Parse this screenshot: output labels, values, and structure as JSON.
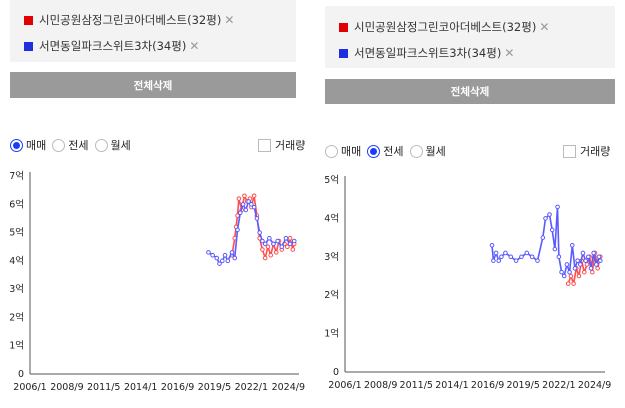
{
  "left": {
    "complexes": [
      {
        "name": "시민공원삼정그린코아더베스트(32평)",
        "color": "#e00000"
      },
      {
        "name": "서면동일파크스위트3차(34평)",
        "color": "#1e2fe0"
      }
    ],
    "clear_label": "전체삭제",
    "trade_tabs": [
      "매매",
      "전세",
      "월세"
    ],
    "selected_tab": "매매",
    "volume_label": "거래량",
    "chart_data": {
      "type": "line",
      "x_ticks": [
        "2006/1",
        "2008/9",
        "2011/5",
        "2014/1",
        "2016/9",
        "2019/5",
        "2022/1",
        "2024/9"
      ],
      "y_ticks": [
        "0",
        "1억",
        "2억",
        "3억",
        "4억",
        "5억",
        "6억",
        "7억"
      ],
      "ylim": [
        0,
        7
      ],
      "series": [
        {
          "name": "시민공원삼정그린코아더베스트(32평)",
          "color": "#ff4d4d",
          "points": [
            [
              2020.6,
              4.2
            ],
            [
              2020.8,
              4.8
            ],
            [
              2020.9,
              5.2
            ],
            [
              2021.0,
              5.6
            ],
            [
              2021.1,
              6.2
            ],
            [
              2021.3,
              5.8
            ],
            [
              2021.5,
              6.3
            ],
            [
              2021.7,
              6.1
            ],
            [
              2021.9,
              6.2
            ],
            [
              2022.0,
              5.9
            ],
            [
              2022.2,
              6.3
            ],
            [
              2022.4,
              5.6
            ],
            [
              2022.6,
              4.8
            ],
            [
              2022.8,
              4.4
            ],
            [
              2023.0,
              4.1
            ],
            [
              2023.2,
              4.5
            ],
            [
              2023.4,
              4.2
            ],
            [
              2023.6,
              4.6
            ],
            [
              2023.8,
              4.3
            ],
            [
              2024.0,
              4.7
            ],
            [
              2024.2,
              4.4
            ],
            [
              2024.4,
              4.6
            ],
            [
              2024.6,
              4.5
            ],
            [
              2024.8,
              4.8
            ],
            [
              2025.0,
              4.4
            ],
            [
              2025.1,
              4.6
            ]
          ]
        },
        {
          "name": "서면동일파크스위트3차(34평)",
          "color": "#5a5aff",
          "points": [
            [
              2018.9,
              4.3
            ],
            [
              2019.2,
              4.2
            ],
            [
              2019.5,
              4.1
            ],
            [
              2019.7,
              3.9
            ],
            [
              2019.9,
              4.0
            ],
            [
              2020.1,
              4.2
            ],
            [
              2020.3,
              4.0
            ],
            [
              2020.6,
              4.3
            ],
            [
              2020.8,
              4.1
            ],
            [
              2021.0,
              5.1
            ],
            [
              2021.2,
              5.7
            ],
            [
              2021.4,
              6.0
            ],
            [
              2021.6,
              5.8
            ],
            [
              2021.8,
              6.1
            ],
            [
              2022.0,
              6.0
            ],
            [
              2022.2,
              5.9
            ],
            [
              2022.4,
              5.5
            ],
            [
              2022.6,
              5.0
            ],
            [
              2022.8,
              4.7
            ],
            [
              2023.0,
              4.6
            ],
            [
              2023.3,
              4.8
            ],
            [
              2023.6,
              4.6
            ],
            [
              2023.9,
              4.7
            ],
            [
              2024.2,
              4.5
            ],
            [
              2024.5,
              4.8
            ],
            [
              2024.8,
              4.6
            ],
            [
              2025.1,
              4.7
            ]
          ]
        }
      ]
    }
  },
  "right": {
    "complexes": [
      {
        "name": "시민공원삼정그린코아더베스트(32평)",
        "color": "#e00000"
      },
      {
        "name": "서면동일파크스위트3차(34평)",
        "color": "#1e2fe0"
      }
    ],
    "clear_label": "전체삭제",
    "trade_tabs": [
      "매매",
      "전세",
      "월세"
    ],
    "selected_tab": "전세",
    "volume_label": "거래량",
    "chart_data": {
      "type": "line",
      "x_ticks": [
        "2006/1",
        "2008/9",
        "2011/5",
        "2014/1",
        "2016/9",
        "2019/5",
        "2022/1",
        "2024/9"
      ],
      "y_ticks": [
        "0",
        "1억",
        "2억",
        "3억",
        "4억",
        "5억"
      ],
      "ylim": [
        0,
        5
      ],
      "series": [
        {
          "name": "시민공원삼정그린코아더베스트(32평)",
          "color": "#ff4d4d",
          "points": [
            [
              2022.7,
              2.3
            ],
            [
              2022.9,
              2.5
            ],
            [
              2023.1,
              2.3
            ],
            [
              2023.3,
              2.7
            ],
            [
              2023.5,
              2.5
            ],
            [
              2023.7,
              2.9
            ],
            [
              2023.9,
              2.6
            ],
            [
              2024.1,
              2.8
            ],
            [
              2024.3,
              3.0
            ],
            [
              2024.5,
              2.6
            ],
            [
              2024.7,
              3.1
            ],
            [
              2024.9,
              2.7
            ],
            [
              2025.1,
              3.0
            ]
          ]
        },
        {
          "name": "서면동일파크스위트3차(34평)",
          "color": "#5a5aff",
          "points": [
            [
              2017.0,
              3.3
            ],
            [
              2017.1,
              2.9
            ],
            [
              2017.3,
              3.1
            ],
            [
              2017.5,
              2.9
            ],
            [
              2017.7,
              3.0
            ],
            [
              2018.0,
              3.1
            ],
            [
              2018.4,
              3.0
            ],
            [
              2018.8,
              2.9
            ],
            [
              2019.2,
              3.0
            ],
            [
              2019.6,
              3.1
            ],
            [
              2020.0,
              3.0
            ],
            [
              2020.4,
              2.9
            ],
            [
              2020.8,
              3.5
            ],
            [
              2021.0,
              4.0
            ],
            [
              2021.3,
              4.1
            ],
            [
              2021.5,
              3.7
            ],
            [
              2021.7,
              3.2
            ],
            [
              2021.9,
              4.3
            ],
            [
              2022.0,
              3.0
            ],
            [
              2022.2,
              2.6
            ],
            [
              2022.4,
              2.5
            ],
            [
              2022.6,
              2.8
            ],
            [
              2022.8,
              2.6
            ],
            [
              2023.0,
              3.3
            ],
            [
              2023.2,
              2.7
            ],
            [
              2023.4,
              2.9
            ],
            [
              2023.6,
              2.8
            ],
            [
              2023.8,
              3.1
            ],
            [
              2024.0,
              2.9
            ],
            [
              2024.2,
              3.0
            ],
            [
              2024.4,
              2.7
            ],
            [
              2024.6,
              3.1
            ],
            [
              2024.8,
              2.8
            ],
            [
              2025.0,
              3.0
            ],
            [
              2025.1,
              2.9
            ]
          ]
        }
      ]
    }
  }
}
